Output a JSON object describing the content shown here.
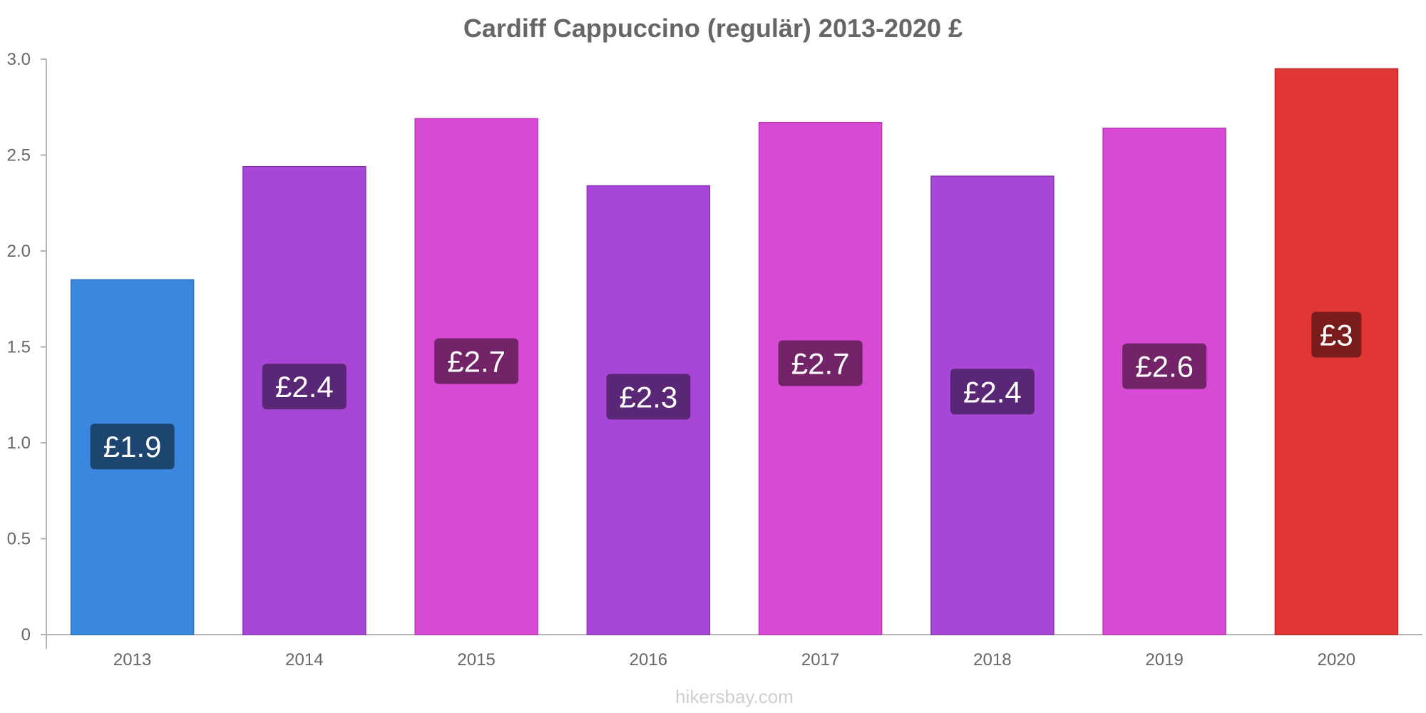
{
  "chart_data": {
    "type": "bar",
    "title": "Cardiff Cappuccino (regulär) 2013-2020 £",
    "categories": [
      "2013",
      "2014",
      "2015",
      "2016",
      "2017",
      "2018",
      "2019",
      "2020"
    ],
    "values": [
      1.85,
      2.44,
      2.69,
      2.34,
      2.67,
      2.39,
      2.64,
      2.95
    ],
    "value_labels": [
      "£1.9",
      "£2.4",
      "£2.7",
      "£2.3",
      "£2.7",
      "£2.4",
      "£2.6",
      "£3"
    ],
    "ylim": [
      0,
      3.0
    ],
    "yticks": [
      0,
      0.5,
      1.0,
      1.5,
      2.0,
      2.5,
      3.0
    ],
    "ytick_labels": [
      "0",
      "0.5",
      "1.0",
      "1.5",
      "2.0",
      "2.5",
      "3.0"
    ],
    "xlabel": "",
    "ylabel": "",
    "grid": false,
    "bar_colors": [
      "#3a87e0",
      "#a846d8",
      "#d64ad4",
      "#a846d8",
      "#d64ad4",
      "#a846d8",
      "#d64ad4",
      "#e03636"
    ],
    "bar_border_colors": [
      "#2b6fbf",
      "#8d33bb",
      "#b935b7",
      "#8d33bb",
      "#b935b7",
      "#8d33bb",
      "#b935b7",
      "#bf2626"
    ],
    "label_box_colors": [
      "#1c4670",
      "#5a2776",
      "#732468",
      "#5a2776",
      "#732468",
      "#5a2776",
      "#732468",
      "#7a1c1c"
    ],
    "axis_color": "#b3b3b3",
    "text_color": "#666666"
  },
  "watermark": "hikersbay.com"
}
